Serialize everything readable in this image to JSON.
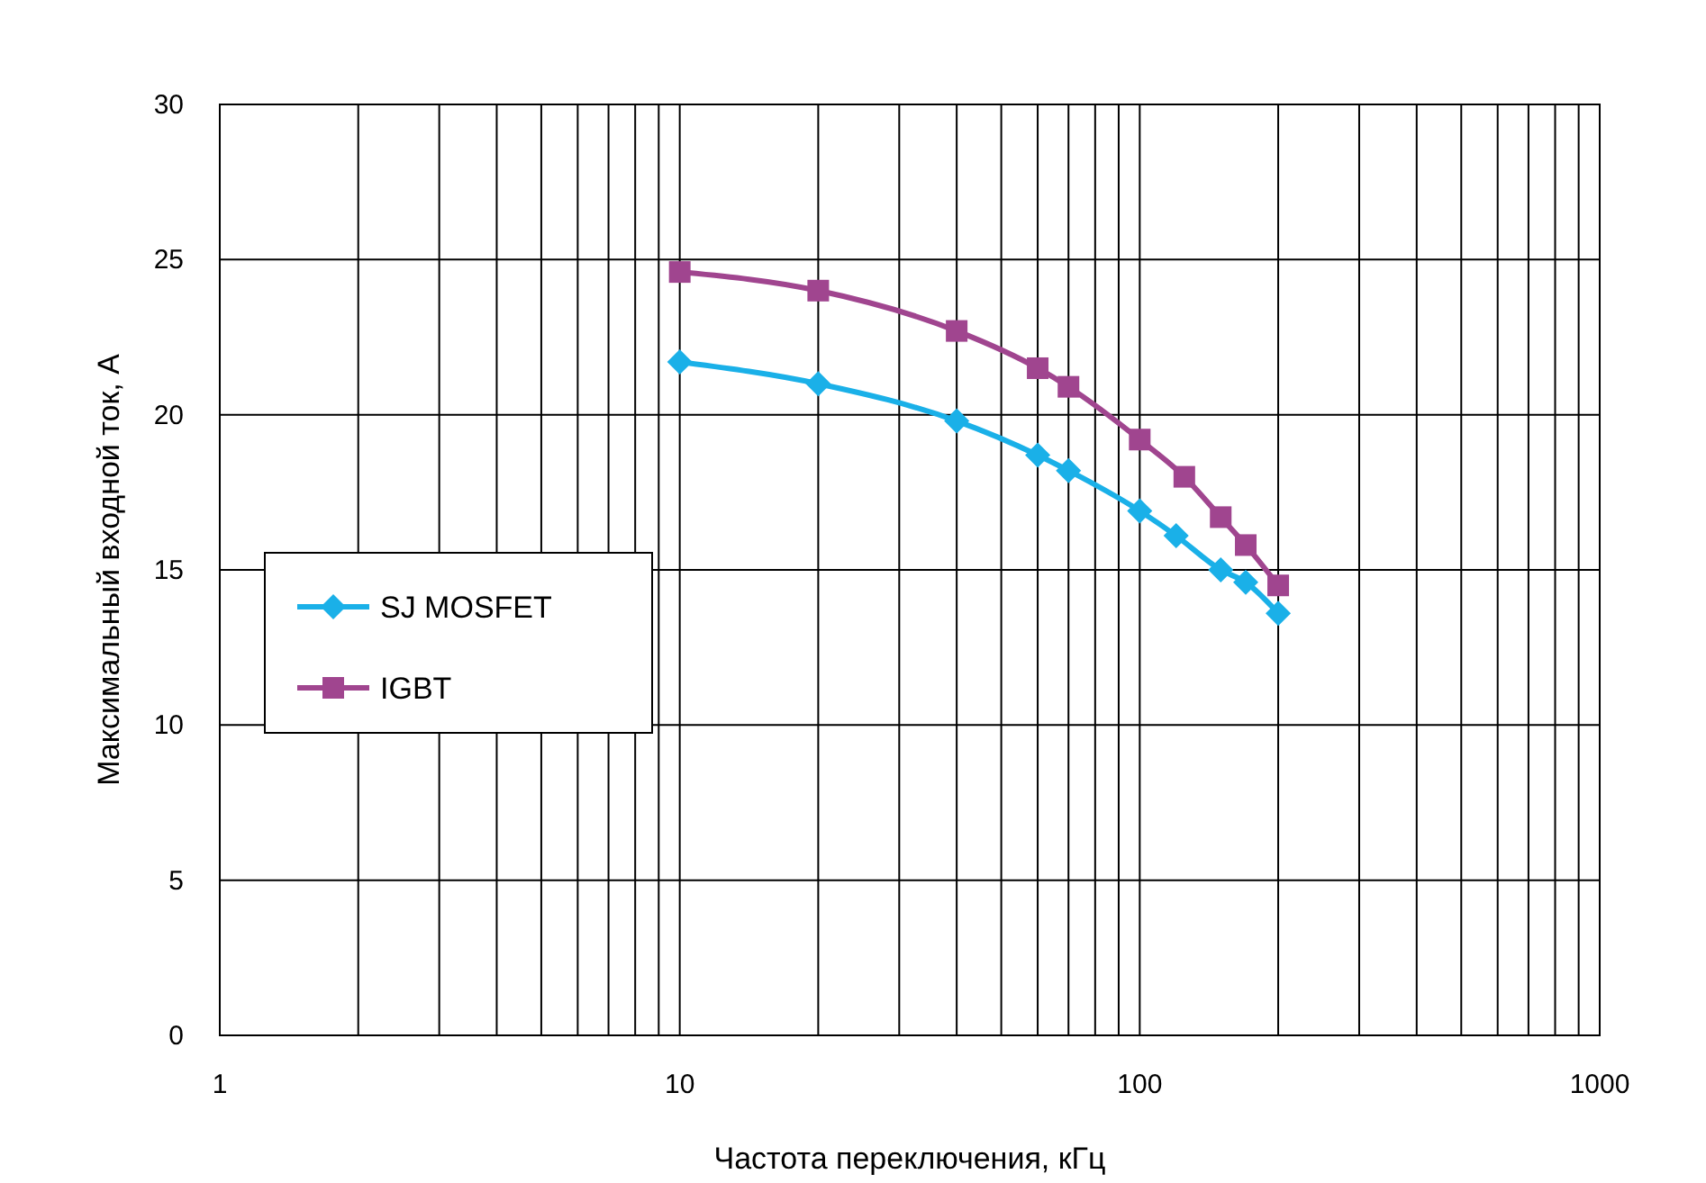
{
  "chart_data": {
    "type": "line",
    "xlabel": "Частота переключения, кГц",
    "ylabel": "Максимальный входной ток, А",
    "log": "x",
    "xlim": [
      1,
      1000
    ],
    "ylim": [
      0,
      30
    ],
    "xticks": [
      1,
      {
        "value": 2,
        "label": null
      },
      {
        "value": 3,
        "label": null
      },
      {
        "value": 4,
        "label": null
      },
      {
        "value": 5,
        "label": null
      },
      {
        "value": 6,
        "label": null
      },
      {
        "value": 7,
        "label": null
      },
      {
        "value": 8,
        "label": null
      },
      {
        "value": 9,
        "label": null
      },
      10,
      {
        "value": 20,
        "label": null
      },
      {
        "value": 30,
        "label": null
      },
      {
        "value": 40,
        "label": null
      },
      {
        "value": 50,
        "label": null
      },
      {
        "value": 60,
        "label": null
      },
      {
        "value": 70,
        "label": null
      },
      {
        "value": 80,
        "label": null
      },
      {
        "value": 90,
        "label": null
      },
      100,
      {
        "value": 200,
        "label": null
      },
      {
        "value": 300,
        "label": null
      },
      {
        "value": 400,
        "label": null
      },
      {
        "value": 500,
        "label": null
      },
      {
        "value": 600,
        "label": null
      },
      {
        "value": 700,
        "label": null
      },
      {
        "value": 800,
        "label": null
      },
      {
        "value": 900,
        "label": null
      },
      1000
    ],
    "yticks": [
      0,
      5,
      10,
      15,
      20,
      25,
      30
    ],
    "grid": true,
    "legend": "left",
    "series": [
      {
        "name": "SJ MOSFET",
        "color": "#1ab0e8",
        "marker": "diamond",
        "x": [
          10,
          20,
          40,
          60,
          70,
          100,
          120,
          150,
          170,
          200
        ],
        "values": [
          21.7,
          21.0,
          19.8,
          18.7,
          18.2,
          16.9,
          16.1,
          15.0,
          14.6,
          13.6
        ]
      },
      {
        "name": "IGBT",
        "color": "#a0458f",
        "marker": "square",
        "x": [
          10,
          20,
          40,
          60,
          70,
          100,
          125,
          150,
          170,
          200
        ],
        "values": [
          24.6,
          24.0,
          22.7,
          21.5,
          20.9,
          19.2,
          18.0,
          16.7,
          15.8,
          14.5
        ]
      }
    ]
  }
}
